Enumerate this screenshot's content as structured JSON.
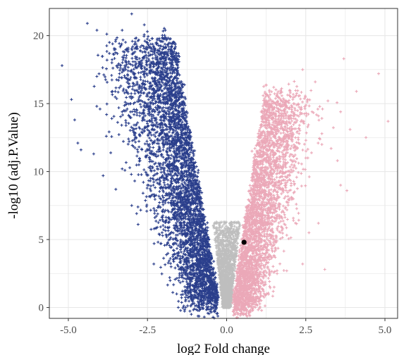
{
  "chart_data": {
    "type": "scatter",
    "title": "",
    "xlabel": "log2 Fold change",
    "ylabel": "-log10 (adj.P.Value)",
    "xlim": [
      -5.6,
      5.4
    ],
    "ylim": [
      -0.8,
      22.0
    ],
    "x_ticks": [
      -5.0,
      -2.5,
      0.0,
      2.5,
      5.0
    ],
    "x_tick_labels": [
      "-5.0",
      "-2.5",
      "0.0",
      "2.5",
      "5.0"
    ],
    "y_ticks": [
      0,
      5,
      10,
      15,
      20
    ],
    "y_tick_labels": [
      "0",
      "5",
      "10",
      "15",
      "20"
    ],
    "grid": true,
    "legend": "none",
    "colors": {
      "down": "#2b3f8c",
      "ns": "#bebebe",
      "up": "#eba8b8",
      "highlight": "#000000",
      "grid": "#e6e6e6",
      "frame": "#333333"
    },
    "groups": [
      {
        "group": "down",
        "x_range": [
          -5.2,
          -0.3
        ],
        "y_range": [
          0.1,
          21.6
        ],
        "approx_count": 6000
      },
      {
        "group": "ns",
        "x_range": [
          -0.45,
          0.45
        ],
        "y_range": [
          0,
          6.5
        ],
        "approx_count": 2500
      },
      {
        "group": "up",
        "x_range": [
          0.2,
          5.1
        ],
        "y_range": [
          0.1,
          18.3
        ],
        "approx_count": 4500
      }
    ],
    "series": [
      {
        "group": "down",
        "points": [
          [
            -5.2,
            17.8
          ],
          [
            -4.4,
            20.9
          ],
          [
            -3.0,
            21.6
          ],
          [
            -2.6,
            20.8
          ],
          [
            -4.9,
            15.3
          ],
          [
            -4.8,
            13.8
          ],
          [
            -4.7,
            12.1
          ],
          [
            -4.6,
            11.6
          ],
          [
            -4.1,
            17.0
          ],
          [
            -4.0,
            14.6
          ],
          [
            -3.7,
            19.5
          ],
          [
            -3.5,
            19.7
          ],
          [
            -3.3,
            20.4
          ],
          [
            -3.5,
            8.7
          ],
          [
            -3.3,
            10.2
          ],
          [
            -3.1,
            12.4
          ],
          [
            -4.2,
            11.3
          ],
          [
            -3.0,
            7.5
          ],
          [
            -2.8,
            7.4
          ],
          [
            -2.3,
            18.0
          ],
          [
            -2.0,
            18.3
          ],
          [
            -1.8,
            18.0
          ],
          [
            -2.5,
            9.0
          ],
          [
            -2.4,
            9.5
          ],
          [
            -2.3,
            3.2
          ],
          [
            -1.8,
            2.2
          ],
          [
            -1.7,
            1.1
          ],
          [
            -2.2,
            16.4
          ],
          [
            -3.3,
            14.4
          ],
          [
            -2.9,
            17.2
          ],
          [
            -3.8,
            12.6
          ],
          [
            -3.9,
            9.7
          ],
          [
            -1.3,
            13.4
          ],
          [
            -1.5,
            10.8
          ],
          [
            -1.1,
            8.3
          ],
          [
            -0.8,
            6.9
          ],
          [
            -0.6,
            4.5
          ],
          [
            -0.5,
            2.5
          ],
          [
            -1.6,
            14.8
          ],
          [
            -2.6,
            13.0
          ]
        ]
      },
      {
        "group": "up",
        "points": [
          [
            4.8,
            17.2
          ],
          [
            3.7,
            18.3
          ],
          [
            2.4,
            17.5
          ],
          [
            5.1,
            13.7
          ],
          [
            4.4,
            12.5
          ],
          [
            3.6,
            14.4
          ],
          [
            3.2,
            15.2
          ],
          [
            3.5,
            10.8
          ],
          [
            3.8,
            8.6
          ],
          [
            2.7,
            14.4
          ],
          [
            3.3,
            11.7
          ],
          [
            2.5,
            11.0
          ],
          [
            3.6,
            9.0
          ],
          [
            2.9,
            6.2
          ],
          [
            2.4,
            3.2
          ],
          [
            1.9,
            13.7
          ],
          [
            1.6,
            12.3
          ],
          [
            1.3,
            10.2
          ],
          [
            1.1,
            8.4
          ],
          [
            0.9,
            6.3
          ],
          [
            0.6,
            3.9
          ],
          [
            0.4,
            1.8
          ],
          [
            1.9,
            2.7
          ],
          [
            1.5,
            1.5
          ],
          [
            2.2,
            7.6
          ],
          [
            2.6,
            5.5
          ],
          [
            3.1,
            2.8
          ],
          [
            1.8,
            9.4
          ],
          [
            2.1,
            10.3
          ],
          [
            1.2,
            4.9
          ],
          [
            0.8,
            11.5
          ],
          [
            2.8,
            16.6
          ],
          [
            4.1,
            15.9
          ],
          [
            3.9,
            13.1
          ]
        ]
      },
      {
        "group": "highlight",
        "points": [
          [
            0.55,
            4.8
          ]
        ]
      }
    ]
  }
}
